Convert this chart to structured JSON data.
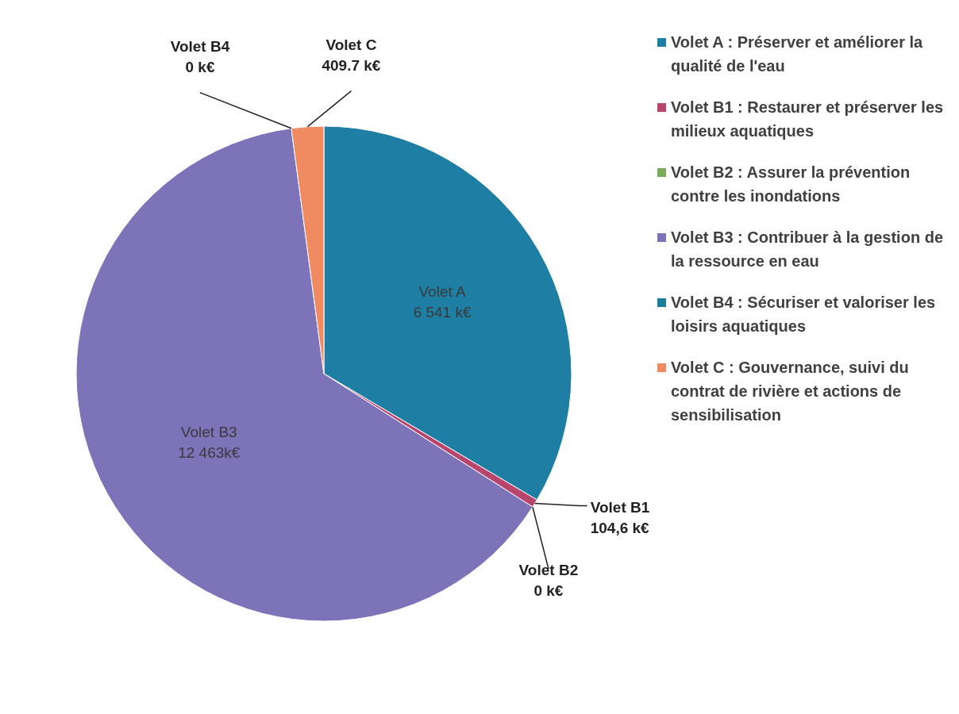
{
  "chart_data": {
    "type": "pie",
    "categories": [
      "Volet A : Préserver et améliorer la qualité de l'eau",
      "Volet B1 : Restaurer et préserver les milieux aquatiques",
      "Volet B2 : Assurer la prévention contre les inondations",
      "Volet B3 : Contribuer à la gestion de la ressource en eau",
      "Volet B4 : Sécuriser et valoriser les loisirs aquatiques",
      "Volet C : Gouvernance, suivi du contrat de rivière et actions de sensibilisation"
    ],
    "values": [
      6541,
      104.6,
      0,
      12463,
      0,
      409.7
    ],
    "value_labels": [
      "Volet A\n6 541 k€",
      "Volet B1\n104,6 k€",
      "Volet B2\n0 k€",
      "Volet B3\n12 463k€",
      "Volet B4\n0 k€",
      "Volet C\n409.7 k€"
    ],
    "colors": [
      "#1f7ea3",
      "#b8466c",
      "#7aaa5a",
      "#7d73b9",
      "#1b8199",
      "#f08a60"
    ],
    "legend": "top right"
  }
}
